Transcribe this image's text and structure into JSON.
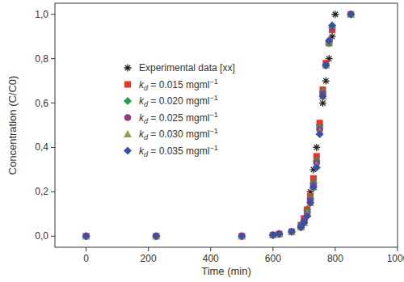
{
  "chart_data": {
    "type": "scatter",
    "x_label": "Time (min)",
    "y_label": "Concentration (C/C0)",
    "xlim": [
      -100,
      1000
    ],
    "xticks": [
      0,
      200,
      400,
      600,
      800,
      1000
    ],
    "ylim": [
      -0.05,
      1.05
    ],
    "yticks": [
      {
        "value": 0,
        "label": "0,0"
      },
      {
        "value": 0.2,
        "label": "0,2"
      },
      {
        "value": 0.4,
        "label": "0,4"
      },
      {
        "value": 0.6,
        "label": "0,6"
      },
      {
        "value": 0.8,
        "label": "0,8"
      },
      {
        "value": 1.0,
        "label": "1,0"
      }
    ],
    "grid": false,
    "legend": "upper left",
    "series": [
      {
        "name": "Experimental data [xx]",
        "color": "#222222",
        "marker": "asterisk",
        "x": [
          700,
          710,
          720,
          730,
          740,
          750,
          760,
          770,
          780,
          790,
          800
        ],
        "values": [
          0.07,
          0.12,
          0.2,
          0.3,
          0.4,
          0.5,
          0.6,
          0.7,
          0.8,
          0.9,
          1.0
        ]
      },
      {
        "name": "kd = 0.015 mgml−1",
        "color": "#e8322b",
        "marker": "square",
        "x": [
          0,
          225,
          500,
          600,
          620,
          660,
          690,
          700,
          710,
          720,
          730,
          740,
          750,
          760,
          770,
          780,
          790,
          850
        ],
        "values": [
          0,
          0,
          0,
          0.005,
          0.01,
          0.02,
          0.05,
          0.08,
          0.12,
          0.18,
          0.26,
          0.36,
          0.51,
          0.66,
          0.78,
          0.87,
          0.93,
          1.0
        ]
      },
      {
        "name": "kd = 0.020 mgml−1",
        "color": "#1fa34a",
        "marker": "diamond",
        "x": [
          0,
          225,
          500,
          600,
          620,
          660,
          690,
          700,
          710,
          720,
          730,
          740,
          750,
          760,
          770,
          780,
          790,
          850
        ],
        "values": [
          0,
          0,
          0,
          0.005,
          0.01,
          0.02,
          0.05,
          0.07,
          0.11,
          0.17,
          0.24,
          0.34,
          0.49,
          0.65,
          0.77,
          0.87,
          0.94,
          1.0
        ]
      },
      {
        "name": "kd = 0.025 mgml−1",
        "color": "#8e3b8e",
        "marker": "circle",
        "x": [
          0,
          225,
          500,
          600,
          620,
          660,
          690,
          700,
          710,
          720,
          730,
          740,
          750,
          760,
          770,
          780,
          790,
          850
        ],
        "values": [
          0,
          0,
          0,
          0.005,
          0.01,
          0.02,
          0.04,
          0.07,
          0.1,
          0.16,
          0.23,
          0.33,
          0.48,
          0.64,
          0.77,
          0.88,
          0.94,
          1.0
        ]
      },
      {
        "name": "kd = 0.030 mgml−1",
        "color": "#9c9a4e",
        "marker": "triangle",
        "x": [
          0,
          225,
          500,
          600,
          620,
          660,
          690,
          700,
          710,
          720,
          730,
          740,
          750,
          760,
          770,
          780,
          790,
          850
        ],
        "values": [
          0,
          0,
          0,
          0.005,
          0.01,
          0.02,
          0.04,
          0.06,
          0.1,
          0.15,
          0.22,
          0.32,
          0.47,
          0.63,
          0.77,
          0.88,
          0.95,
          1.0
        ]
      },
      {
        "name": "kd = 0.035 mgml−1",
        "color": "#3a4fa8",
        "marker": "diamond",
        "x": [
          0,
          225,
          500,
          600,
          620,
          660,
          690,
          700,
          710,
          720,
          730,
          740,
          750,
          760,
          770,
          780,
          790,
          850
        ],
        "values": [
          0,
          0,
          0,
          0.005,
          0.01,
          0.02,
          0.04,
          0.06,
          0.09,
          0.15,
          0.22,
          0.31,
          0.46,
          0.63,
          0.77,
          0.88,
          0.95,
          1.0
        ]
      }
    ]
  }
}
